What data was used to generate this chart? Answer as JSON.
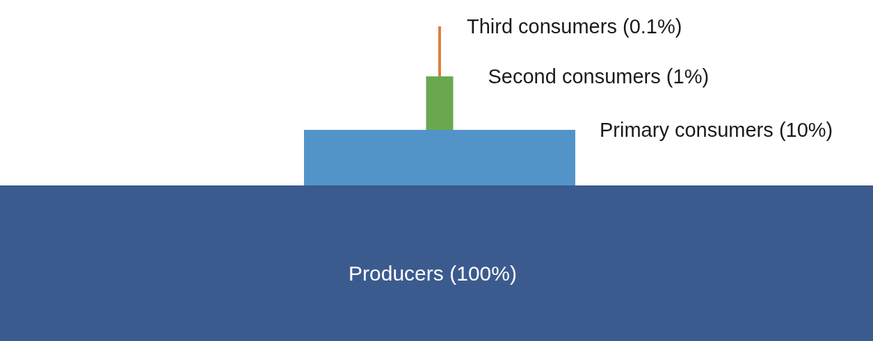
{
  "chart_data": {
    "type": "other",
    "categories": [
      "Third consumers",
      "Second consumers",
      "Primary consumers",
      "Producers"
    ],
    "values": [
      0.1,
      1,
      10,
      100
    ],
    "value_labels": [
      "(0.1%)",
      "(1%)",
      "(10%)",
      "(100%)"
    ],
    "colors": [
      "#e07b39",
      "#6aa84f",
      "#5294c8",
      "#3b5b8f"
    ]
  }
}
